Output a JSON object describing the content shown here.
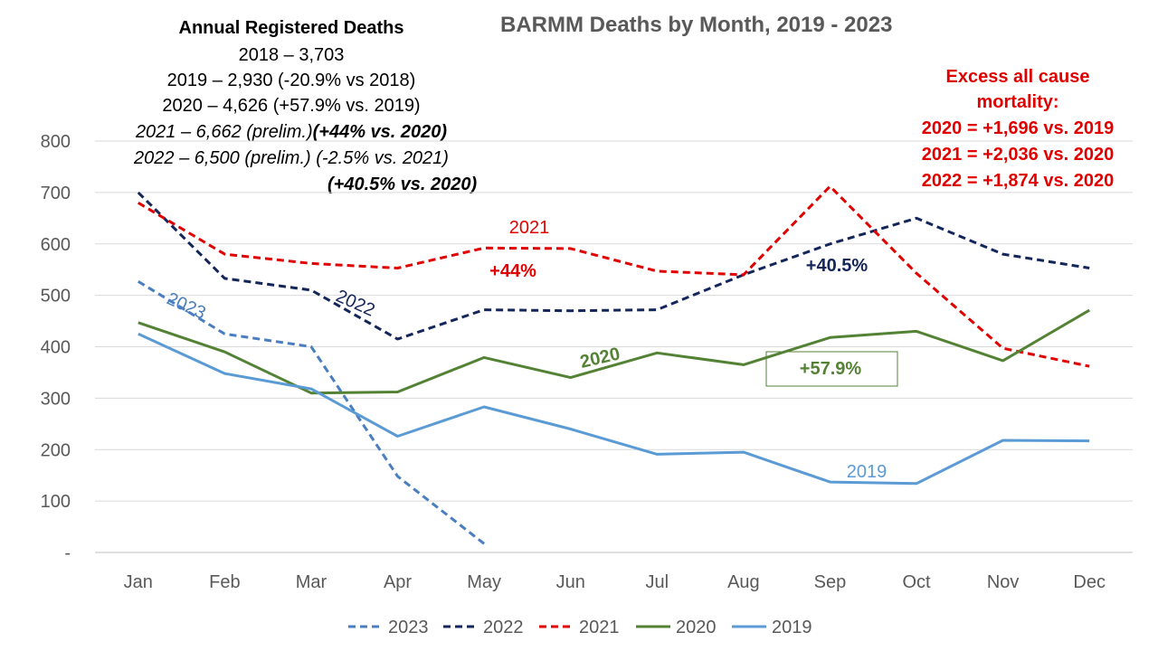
{
  "title": "BARMM Deaths by Month, 2019 - 2023",
  "annotation": {
    "heading": "Annual Registered Deaths",
    "lines": {
      "l2018": "2018 – 3,703",
      "l2019": "2019 – 2,930 (-20.9% vs 2018)",
      "l2020": "2020 – 4,626 (+57.9% vs. 2019)",
      "l2021_a": "2021 – 6,662 (prelim.)",
      "l2021_b": "(+44% vs. 2020)",
      "l2022": "2022 – 6,500 (prelim.) (-2.5% vs. 2021)",
      "l2022_b": "(+40.5% vs. 2020)"
    }
  },
  "excess": {
    "title1": "Excess all cause",
    "title2": "mortality:",
    "line1": "2020 = +1,696 vs. 2019",
    "line2": "2021 = +2,036 vs. 2020",
    "line3": "2022 = +1,874 vs. 2020"
  },
  "chart_data": {
    "type": "line",
    "title": "BARMM Deaths by Month, 2019 - 2023",
    "categories": [
      "Jan",
      "Feb",
      "Mar",
      "Apr",
      "May",
      "Jun",
      "Jul",
      "Aug",
      "Sep",
      "Oct",
      "Nov",
      "Dec"
    ],
    "ylim": [
      0,
      800
    ],
    "yticks": [
      0,
      100,
      200,
      300,
      400,
      500,
      600,
      700,
      800
    ],
    "ytick_labels": [
      "-",
      "100",
      "200",
      "300",
      "400",
      "500",
      "600",
      "700",
      "800"
    ],
    "grid": true,
    "legend_position": "bottom",
    "series": [
      {
        "name": "2023",
        "color": "#4a7ec0",
        "dash": "dashed",
        "values": [
          527,
          425,
          400,
          148,
          17,
          null,
          null,
          null,
          null,
          null,
          null,
          null
        ]
      },
      {
        "name": "2022",
        "color": "#14255a",
        "dash": "dashed",
        "values": [
          700,
          533,
          510,
          415,
          472,
          470,
          472,
          540,
          600,
          650,
          580,
          553
        ]
      },
      {
        "name": "2021",
        "color": "#e00000",
        "dash": "dashed",
        "values": [
          680,
          580,
          562,
          553,
          592,
          591,
          547,
          540,
          712,
          543,
          397,
          362
        ]
      },
      {
        "name": "2020",
        "color": "#548235",
        "dash": "solid",
        "values": [
          447,
          390,
          310,
          312,
          379,
          340,
          388,
          365,
          418,
          430,
          373,
          471
        ]
      },
      {
        "name": "2019",
        "color": "#5b9bd5",
        "dash": "solid",
        "values": [
          425,
          348,
          318,
          226,
          283,
          240,
          191,
          195,
          137,
          134,
          218,
          217
        ]
      }
    ],
    "annotations": [
      {
        "text": "2023",
        "color": "#4a7ec0"
      },
      {
        "text": "2022",
        "color": "#14255a"
      },
      {
        "text": "2021",
        "color": "#e00000"
      },
      {
        "text": "+44%",
        "color": "#e00000"
      },
      {
        "text": "2020",
        "color": "#548235"
      },
      {
        "text": "+57.9%",
        "color": "#548235"
      },
      {
        "text": "+40.5%",
        "color": "#14255a"
      },
      {
        "text": "2019",
        "color": "#5b9bd5"
      }
    ]
  }
}
